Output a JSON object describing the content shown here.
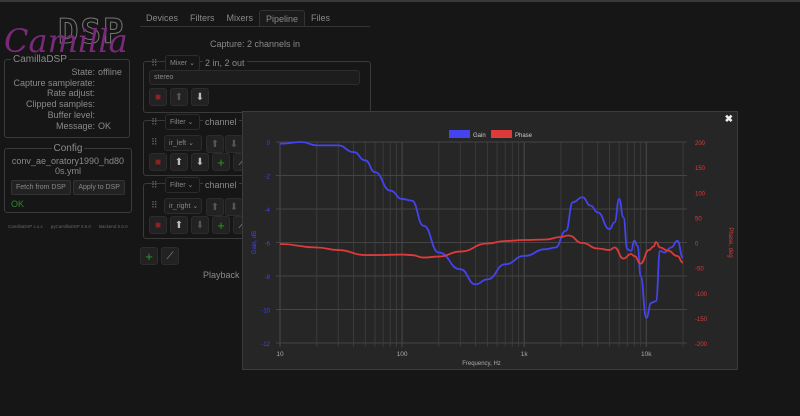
{
  "logo": {
    "text": "CamillaDSP"
  },
  "tabs": [
    "Devices",
    "Filters",
    "Mixers",
    "Pipeline",
    "Files"
  ],
  "active_tab": "Pipeline",
  "status": {
    "legend": "CamillaDSP",
    "rows": [
      {
        "label": "State:",
        "value": "offline"
      },
      {
        "label": "Capture samplerate:",
        "value": ""
      },
      {
        "label": "Rate adjust:",
        "value": ""
      },
      {
        "label": "Clipped samples:",
        "value": ""
      },
      {
        "label": "Buffer level:",
        "value": ""
      },
      {
        "label": "Message:",
        "value": "OK"
      }
    ]
  },
  "config": {
    "legend": "Config",
    "filename": "conv_ae_oratory1990_hd800s.yml",
    "fetch": "Fetch from DSP",
    "apply": "Apply to DSP",
    "result": "OK"
  },
  "versions": {
    "gui": "CamillaDSP x.x.x",
    "py": "pyCamillaDSP 0.6.0",
    "backend": "Backend 0.6.0"
  },
  "pipeline": {
    "capture": "Capture: 2 channels in",
    "playback": "Playback",
    "steps": [
      {
        "type": "Mixer",
        "title": "2 in, 2 out",
        "item": "stereo"
      },
      {
        "type": "Filter",
        "title": "channel",
        "item": "ir_left"
      },
      {
        "type": "Filter",
        "title": "channel",
        "item": "ir_right"
      }
    ]
  },
  "colors": {
    "gain": "#4444ee",
    "phase": "#dd3a3a",
    "ok": "#2a8a2a",
    "delete": "#8a2222"
  },
  "chart_data": {
    "type": "line",
    "legend": [
      "Gain",
      "Phase"
    ],
    "legend_position": "top",
    "xlabel": "Frequency, Hz",
    "ylabel": "Gain, dB",
    "y2label": "Phase, deg",
    "xscale": "log",
    "xlim": [
      10,
      20000
    ],
    "ylim": [
      -12,
      0
    ],
    "y2lim": [
      -200,
      200
    ],
    "grid": true,
    "xticks": [
      "10",
      "100",
      "1k",
      "10k"
    ],
    "yticks": [
      "0",
      "-2",
      "-4",
      "-6",
      "-8",
      "-10",
      "-12"
    ],
    "y2ticks": [
      "200",
      "150",
      "100",
      "50",
      "0",
      "-50",
      "-100",
      "-150",
      "-200"
    ],
    "series": [
      {
        "name": "Gain",
        "axis": "left",
        "x": [
          10,
          15,
          20,
          30,
          40,
          50,
          60,
          80,
          100,
          120,
          150,
          200,
          300,
          400,
          500,
          700,
          1000,
          1500,
          1800,
          2200,
          2500,
          3000,
          3500,
          4000,
          5000,
          5500,
          6000,
          6500,
          7000,
          7500,
          8000,
          8500,
          9000,
          10000,
          11000,
          12000,
          13000,
          14000,
          16000,
          18000,
          20000
        ],
        "y": [
          -0.1,
          0,
          -0.2,
          -0.2,
          -0.6,
          -1.1,
          -1.8,
          -2.9,
          -3.4,
          -3.5,
          -5.0,
          -6.6,
          -7.6,
          -8.5,
          -8.2,
          -7.3,
          -6.8,
          -6.4,
          -6.3,
          -5.3,
          -3.6,
          -3.3,
          -3.8,
          -4.2,
          -5.2,
          -4.8,
          -3.4,
          -4.5,
          -6.4,
          -6.5,
          -5.9,
          -6.2,
          -8.0,
          -10.5,
          -9.6,
          -9.5,
          -6.5,
          -6.6,
          -6.3,
          -5.9,
          -6.9
        ]
      },
      {
        "name": "Phase",
        "axis": "right",
        "x": [
          10,
          20,
          30,
          50,
          60,
          100,
          120,
          150,
          200,
          300,
          500,
          700,
          1000,
          1500,
          2000,
          2300,
          3000,
          4000,
          5000,
          5500,
          6500,
          7500,
          8000,
          9000,
          10500,
          11500,
          12000,
          13000,
          15000,
          18000,
          20000
        ],
        "y": [
          -3,
          -10,
          -15,
          -25,
          -25,
          -24,
          -25,
          -30,
          -28,
          -18,
          -2,
          3,
          5,
          6,
          11,
          14,
          -1,
          -12,
          -15,
          -10,
          -32,
          -23,
          -27,
          -42,
          -15,
          -8,
          1,
          -10,
          -16,
          -27,
          -40
        ]
      }
    ]
  }
}
